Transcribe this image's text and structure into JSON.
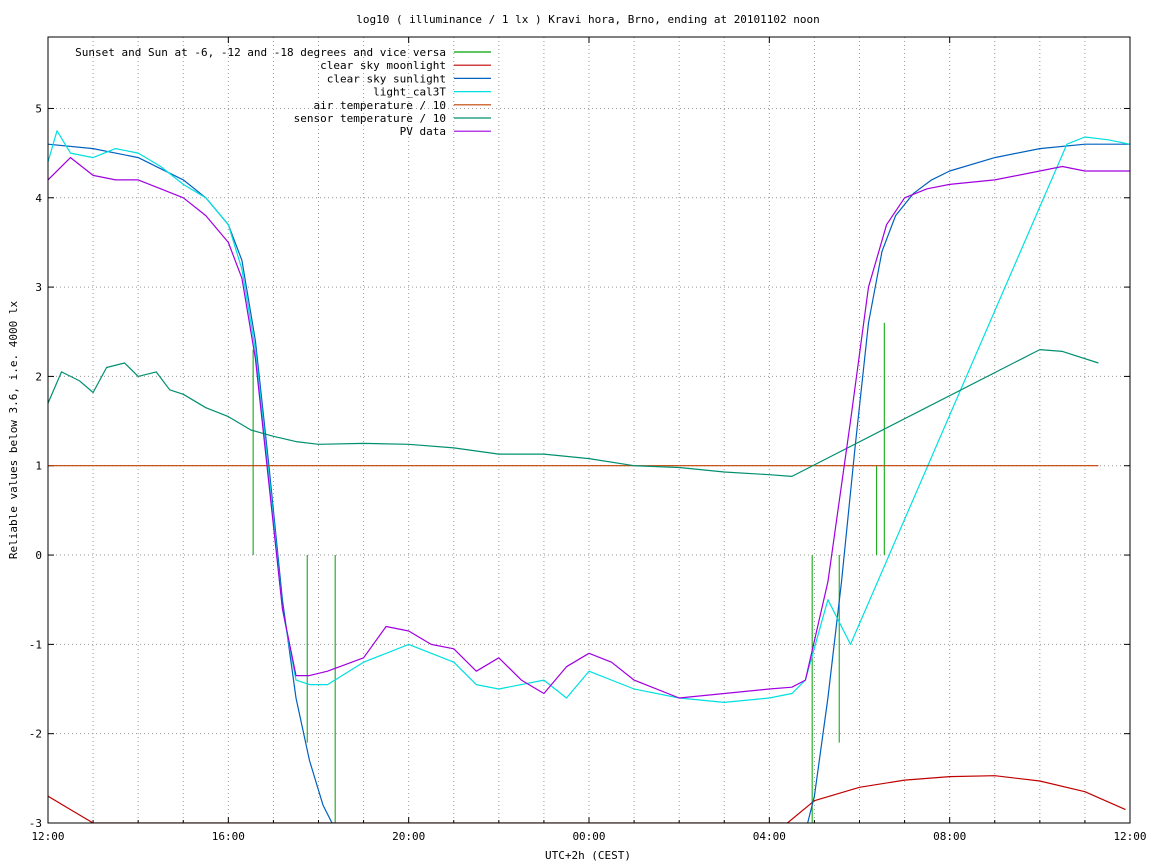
{
  "chart_data": {
    "type": "line",
    "title": "log10 ( illuminance / 1 lx ) Kravi hora, Brno, ending at 20101102 noon",
    "xlabel": "UTC+2h (CEST)",
    "ylabel": "Reliable values below 3.6, i.e. 4000 lx",
    "xlim": [
      0,
      24
    ],
    "ylim": [
      -3,
      5.8
    ],
    "x_tick_values": [
      0,
      4,
      8,
      12,
      16,
      20,
      24
    ],
    "x_tick_labels": [
      "12:00",
      "16:00",
      "20:00",
      "00:00",
      "04:00",
      "08:00",
      "12:00"
    ],
    "y_ticks": [
      -3,
      -2,
      -1,
      0,
      1,
      2,
      3,
      4,
      5
    ],
    "x_grid_step": 1,
    "grid": true,
    "legend_position": "top-left",
    "series": [
      {
        "name": "Sunset and Sun at -6, -12 and -18 degrees and vice versa",
        "color": "#00a000",
        "style": "impulse",
        "x": [
          4.55,
          5.75,
          6.37,
          16.95,
          17.55,
          18.38,
          18.55
        ],
        "y": [
          2.3,
          -2.1,
          -3.0,
          -3.0,
          -2.1,
          1.0,
          2.6
        ]
      },
      {
        "name": "clear sky moonlight",
        "color": "#c00000",
        "x": [
          0,
          0.5,
          1,
          16.4,
          17,
          18,
          19,
          20,
          21,
          22,
          23,
          23.9
        ],
        "y": [
          -2.7,
          -2.85,
          -3.0,
          -3.0,
          -2.75,
          -2.6,
          -2.52,
          -2.48,
          -2.47,
          -2.53,
          -2.65,
          -2.85
        ]
      },
      {
        "name": "clear sky sunlight",
        "color": "#0060c0",
        "x": [
          0,
          1,
          2,
          3,
          3.5,
          4,
          4.3,
          4.6,
          4.9,
          5.2,
          5.5,
          5.8,
          6.1,
          6.4,
          6.6,
          16.7,
          17,
          17.3,
          17.6,
          17.9,
          18.2,
          18.5,
          18.8,
          19.2,
          19.6,
          20,
          21,
          22,
          23,
          24
        ],
        "y": [
          4.6,
          4.55,
          4.45,
          4.2,
          4.0,
          3.7,
          3.3,
          2.4,
          1.0,
          -0.5,
          -1.6,
          -2.3,
          -2.8,
          -3.1,
          -3.3,
          -3.3,
          -2.7,
          -1.6,
          -0.3,
          1.2,
          2.6,
          3.4,
          3.8,
          4.05,
          4.2,
          4.3,
          4.45,
          4.55,
          4.6,
          4.6
        ]
      },
      {
        "name": "light_cal3T",
        "color": "#00e0e0",
        "x": [
          0,
          0.2,
          0.5,
          1,
          1.5,
          2,
          2.5,
          3,
          3.5,
          4,
          4.3,
          4.6,
          4.9,
          5.2,
          5.5,
          5.8,
          6.2,
          7,
          8,
          9,
          9.5,
          10,
          11,
          11.5,
          12,
          13,
          14,
          15,
          16,
          16.5,
          16.8,
          17.3,
          17.8,
          22.6,
          23,
          23.5,
          24
        ],
        "y": [
          4.4,
          4.75,
          4.5,
          4.45,
          4.55,
          4.5,
          4.35,
          4.15,
          4.0,
          3.7,
          3.2,
          2.3,
          0.9,
          -0.6,
          -1.4,
          -1.45,
          -1.45,
          -1.2,
          -1.0,
          -1.2,
          -1.45,
          -1.5,
          -1.4,
          -1.6,
          -1.3,
          -1.5,
          -1.6,
          -1.65,
          -1.6,
          -1.55,
          -1.4,
          -0.5,
          -1.0,
          4.6,
          4.68,
          4.65,
          4.6
        ]
      },
      {
        "name": "air temperature / 10",
        "color": "#c04000",
        "x": [
          0,
          23.3
        ],
        "y": [
          1.0,
          1.0
        ]
      },
      {
        "name": "sensor temperature / 10",
        "color": "#009070",
        "x": [
          0,
          0.3,
          0.7,
          1,
          1.3,
          1.7,
          2,
          2.4,
          2.7,
          3,
          3.5,
          4,
          4.5,
          5,
          5.5,
          6,
          7,
          8,
          9,
          10,
          11,
          12,
          13,
          14,
          15,
          16,
          16.5,
          22,
          22.5,
          23.3
        ],
        "y": [
          1.7,
          2.05,
          1.95,
          1.82,
          2.1,
          2.15,
          2.0,
          2.05,
          1.85,
          1.8,
          1.65,
          1.55,
          1.4,
          1.33,
          1.27,
          1.24,
          1.25,
          1.24,
          1.2,
          1.13,
          1.13,
          1.08,
          1.0,
          0.98,
          0.93,
          0.9,
          0.88,
          2.3,
          2.28,
          2.15
        ]
      },
      {
        "name": "PV data",
        "color": "#a000e0",
        "x": [
          0,
          0.5,
          1,
          1.5,
          2,
          2.5,
          3,
          3.5,
          4,
          4.3,
          4.6,
          4.9,
          5.2,
          5.5,
          5.8,
          6.2,
          7,
          7.5,
          8,
          8.5,
          9,
          9.5,
          10,
          10.5,
          11,
          11.5,
          12,
          12.5,
          13,
          14,
          15,
          16,
          16.5,
          16.8,
          17.3,
          17.8,
          18.2,
          18.6,
          19,
          19.5,
          20,
          21,
          22,
          22.5,
          23,
          24
        ],
        "y": [
          4.2,
          4.45,
          4.25,
          4.2,
          4.2,
          4.1,
          4.0,
          3.8,
          3.5,
          3.1,
          2.2,
          0.8,
          -0.6,
          -1.35,
          -1.35,
          -1.3,
          -1.15,
          -0.8,
          -0.85,
          -1.0,
          -1.05,
          -1.3,
          -1.15,
          -1.4,
          -1.55,
          -1.25,
          -1.1,
          -1.2,
          -1.4,
          -1.6,
          -1.55,
          -1.5,
          -1.48,
          -1.4,
          -0.3,
          1.5,
          3.0,
          3.7,
          4.0,
          4.1,
          4.15,
          4.2,
          4.3,
          4.35,
          4.3,
          4.3
        ]
      }
    ]
  }
}
